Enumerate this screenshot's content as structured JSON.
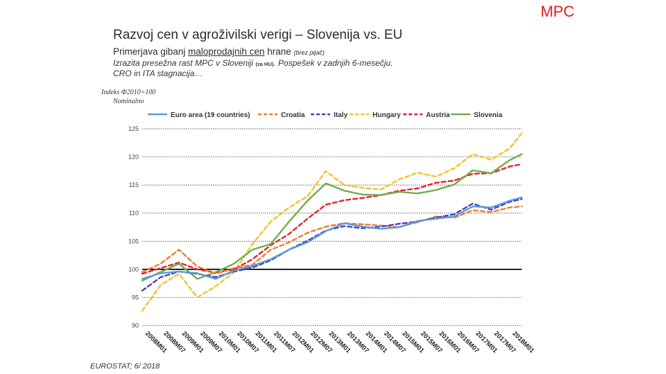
{
  "corner_tag": "MPC",
  "header": {
    "title": "Razvoj cen v agroživilski verigi – Slovenija vs. EU",
    "subtitle_pre": "Primerjava gibanj ",
    "subtitle_underlined": "maloprodajnih cen",
    "subtitle_post": " hrane ",
    "subtitle_note": "(brez pijač)",
    "line1_pre": "Izrazita presežna rast MPC v Sloveniji ",
    "line1_note": "(za HU)",
    "line1_post": ". Pospešek v zadnjih 6-mesečju.",
    "line2": "CRO in ITA stagnacija…"
  },
  "axis_notes": {
    "index": "Indeks Ф2010=100",
    "nominal": "Nominalno"
  },
  "source": "EUROSTAT; 6/ 2018",
  "chart_data": {
    "type": "line",
    "ylim": [
      90,
      125
    ],
    "yticks": [
      90,
      95,
      100,
      105,
      110,
      115,
      120,
      125
    ],
    "x_start": "2008M01",
    "x_end": "2018M05",
    "x_ticks": [
      "2008M01",
      "2008M07",
      "2009M01",
      "2009M07",
      "2010M01",
      "2010M07",
      "2011M01",
      "2011M07",
      "2012M01",
      "2012M07",
      "2013M01",
      "2013M07",
      "2014M01",
      "2014M07",
      "2015M01",
      "2015M07",
      "2016M01",
      "2016M07",
      "2017M01",
      "2017M07",
      "2018M01"
    ],
    "legend_position": "top",
    "series": [
      {
        "name": "Euro area (19 countries)",
        "color": "#5b9bd5",
        "dash": "solid",
        "points": [
          [
            "2008M01",
            98.3
          ],
          [
            "2008M07",
            99.3
          ],
          [
            "2009M01",
            99.6
          ],
          [
            "2009M07",
            99.3
          ],
          [
            "2010M01",
            98.3
          ],
          [
            "2010M07",
            99.8
          ],
          [
            "2011M01",
            100.6
          ],
          [
            "2011M07",
            101.8
          ],
          [
            "2012M01",
            103.5
          ],
          [
            "2012M07",
            104.8
          ],
          [
            "2013M01",
            106.8
          ],
          [
            "2013M07",
            108.2
          ],
          [
            "2014M01",
            107.6
          ],
          [
            "2014M07",
            107.2
          ],
          [
            "2015M01",
            107.5
          ],
          [
            "2015M07",
            108.6
          ],
          [
            "2016M01",
            109.0
          ],
          [
            "2016M07",
            109.4
          ],
          [
            "2017M01",
            111.2
          ],
          [
            "2017M07",
            111.0
          ],
          [
            "2018M01",
            112.2
          ],
          [
            "2018M05",
            112.8
          ]
        ]
      },
      {
        "name": "Croatia",
        "color": "#ed7d31",
        "dash": "dashed",
        "points": [
          [
            "2008M01",
            99.5
          ],
          [
            "2008M07",
            101.0
          ],
          [
            "2009M01",
            103.5
          ],
          [
            "2009M07",
            100.5
          ],
          [
            "2010M01",
            99.2
          ],
          [
            "2010M07",
            100.2
          ],
          [
            "2011M01",
            100.8
          ],
          [
            "2011M07",
            103.5
          ],
          [
            "2012M01",
            104.8
          ],
          [
            "2012M07",
            106.5
          ],
          [
            "2013M01",
            107.6
          ],
          [
            "2013M07",
            108.2
          ],
          [
            "2014M01",
            108.0
          ],
          [
            "2014M07",
            107.8
          ],
          [
            "2015M01",
            107.5
          ],
          [
            "2015M07",
            108.4
          ],
          [
            "2016M01",
            109.4
          ],
          [
            "2016M07",
            109.2
          ],
          [
            "2017M01",
            110.5
          ],
          [
            "2017M07",
            110.2
          ],
          [
            "2018M01",
            111.0
          ],
          [
            "2018M05",
            111.2
          ]
        ]
      },
      {
        "name": "Italy",
        "color": "#4b3ec2",
        "dash": "dashed",
        "points": [
          [
            "2008M01",
            96.2
          ],
          [
            "2008M07",
            98.6
          ],
          [
            "2009M01",
            99.6
          ],
          [
            "2009M07",
            99.2
          ],
          [
            "2010M01",
            98.6
          ],
          [
            "2010M07",
            99.6
          ],
          [
            "2011M01",
            100.3
          ],
          [
            "2011M07",
            101.6
          ],
          [
            "2012M01",
            103.5
          ],
          [
            "2012M07",
            105.1
          ],
          [
            "2013M01",
            106.9
          ],
          [
            "2013M07",
            107.7
          ],
          [
            "2014M01",
            107.3
          ],
          [
            "2014M07",
            107.6
          ],
          [
            "2015M01",
            108.1
          ],
          [
            "2015M07",
            108.5
          ],
          [
            "2016M01",
            109.2
          ],
          [
            "2016M07",
            109.8
          ],
          [
            "2017M01",
            111.7
          ],
          [
            "2017M07",
            110.6
          ],
          [
            "2018M01",
            112.0
          ],
          [
            "2018M05",
            112.5
          ]
        ]
      },
      {
        "name": "Hungary",
        "color": "#f5c226",
        "dash": "dashed",
        "points": [
          [
            "2008M01",
            92.6
          ],
          [
            "2008M07",
            97.2
          ],
          [
            "2009M01",
            99.2
          ],
          [
            "2009M07",
            95.0
          ],
          [
            "2010M01",
            97.0
          ],
          [
            "2010M07",
            99.5
          ],
          [
            "2011M01",
            104.5
          ],
          [
            "2011M07",
            108.5
          ],
          [
            "2012M01",
            111.0
          ],
          [
            "2012M07",
            113.0
          ],
          [
            "2013M01",
            117.5
          ],
          [
            "2013M07",
            115.0
          ],
          [
            "2014M01",
            114.5
          ],
          [
            "2014M07",
            114.2
          ],
          [
            "2015M01",
            116.0
          ],
          [
            "2015M07",
            117.2
          ],
          [
            "2016M01",
            116.5
          ],
          [
            "2016M07",
            118.0
          ],
          [
            "2017M01",
            120.5
          ],
          [
            "2017M07",
            119.5
          ],
          [
            "2018M01",
            121.5
          ],
          [
            "2018M05",
            124.2
          ]
        ]
      },
      {
        "name": "Austria",
        "color": "#e8202b",
        "dash": "dashed",
        "points": [
          [
            "2008M01",
            99.2
          ],
          [
            "2008M07",
            100.2
          ],
          [
            "2009M01",
            101.2
          ],
          [
            "2009M07",
            100.0
          ],
          [
            "2010M01",
            99.4
          ],
          [
            "2010M07",
            100.0
          ],
          [
            "2011M01",
            101.8
          ],
          [
            "2011M07",
            104.3
          ],
          [
            "2012M01",
            106.3
          ],
          [
            "2012M07",
            109.0
          ],
          [
            "2013M01",
            111.5
          ],
          [
            "2013M07",
            112.3
          ],
          [
            "2014M01",
            112.7
          ],
          [
            "2014M07",
            113.2
          ],
          [
            "2015M01",
            114.0
          ],
          [
            "2015M07",
            114.4
          ],
          [
            "2016M01",
            115.4
          ],
          [
            "2016M07",
            115.8
          ],
          [
            "2017M01",
            117.0
          ],
          [
            "2017M07",
            117.1
          ],
          [
            "2018M01",
            118.3
          ],
          [
            "2018M05",
            118.7
          ]
        ]
      },
      {
        "name": "Slovenia",
        "color": "#70ad47",
        "dash": "solid",
        "points": [
          [
            "2008M01",
            98.0
          ],
          [
            "2008M07",
            99.5
          ],
          [
            "2009M01",
            101.0
          ],
          [
            "2009M07",
            98.3
          ],
          [
            "2010M01",
            99.5
          ],
          [
            "2010M07",
            101.0
          ],
          [
            "2011M01",
            103.5
          ],
          [
            "2011M07",
            104.5
          ],
          [
            "2012M01",
            108.5
          ],
          [
            "2012M07",
            112.2
          ],
          [
            "2013M01",
            115.3
          ],
          [
            "2013M07",
            114.0
          ],
          [
            "2014M01",
            113.3
          ],
          [
            "2014M07",
            113.2
          ],
          [
            "2015M01",
            113.8
          ],
          [
            "2015M07",
            113.5
          ],
          [
            "2016M01",
            114.1
          ],
          [
            "2016M07",
            115.1
          ],
          [
            "2017M01",
            117.6
          ],
          [
            "2017M07",
            117.1
          ],
          [
            "2018M01",
            119.4
          ],
          [
            "2018M05",
            120.5
          ]
        ]
      }
    ]
  }
}
